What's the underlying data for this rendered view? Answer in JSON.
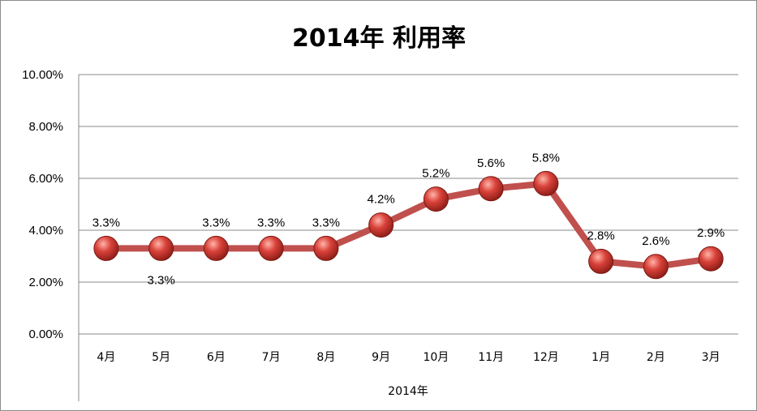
{
  "chart_data": {
    "type": "line",
    "title": "2014年 利用率",
    "xlabel": "2014年",
    "ylabel": "",
    "categories": [
      "4月",
      "5月",
      "6月",
      "7月",
      "8月",
      "9月",
      "10月",
      "11月",
      "12月",
      "1月",
      "2月",
      "3月"
    ],
    "series": [
      {
        "values": [
          3.3,
          3.3,
          3.3,
          3.3,
          3.3,
          4.2,
          5.2,
          5.6,
          5.8,
          2.8,
          2.6,
          2.9
        ],
        "labels": [
          "3.3%",
          "3.3%",
          "3.3%",
          "3.3%",
          "3.3%",
          "4.2%",
          "5.2%",
          "5.6%",
          "5.8%",
          "2.8%",
          "2.6%",
          "2.9%"
        ],
        "label_position": [
          "above",
          "below",
          "above",
          "above",
          "above",
          "above",
          "above",
          "above",
          "above",
          "above",
          "above",
          "above"
        ]
      }
    ],
    "yticks": [
      "0.00%",
      "2.00%",
      "4.00%",
      "6.00%",
      "8.00%",
      "10.00%"
    ],
    "ylim": [
      0,
      10
    ],
    "grid": true,
    "legend": "none",
    "colors": {
      "line": "#c0504d",
      "marker": "#c0392b",
      "marker_highlight": "#ff9a8a",
      "grid": "#8a8a8a"
    }
  }
}
